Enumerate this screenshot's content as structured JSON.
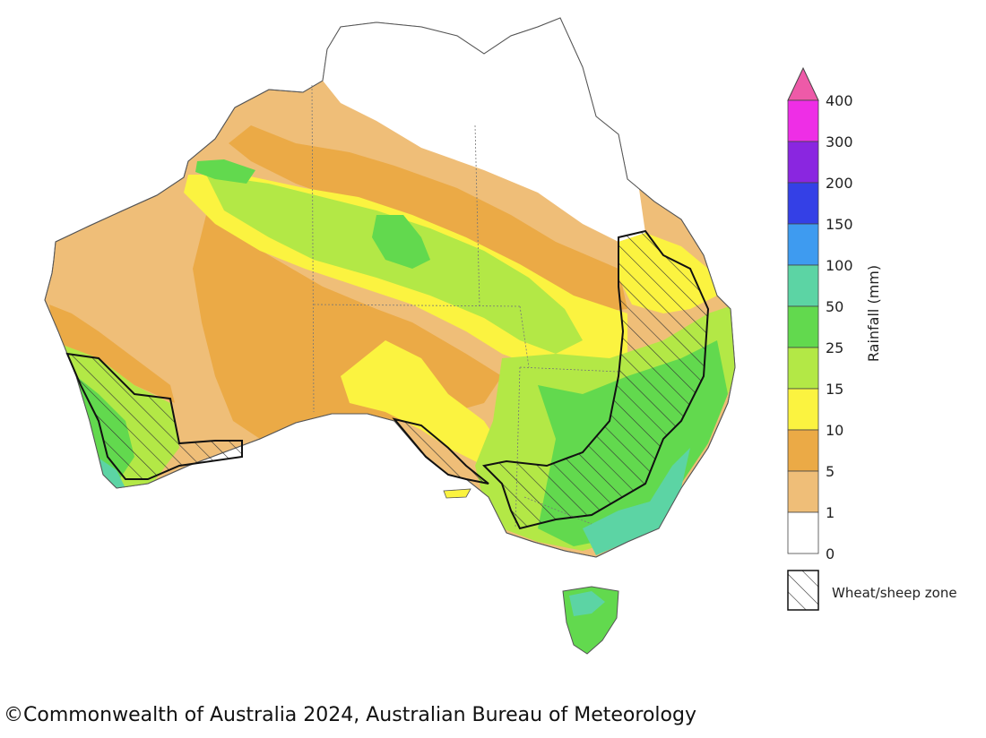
{
  "map": {
    "legend": {
      "title": "Rainfall (mm)",
      "ticks": [
        "400",
        "300",
        "200",
        "150",
        "100",
        "50",
        "25",
        "15",
        "10",
        "5",
        "1",
        "0"
      ],
      "bands": [
        {
          "range": "300-400",
          "color": "#ee2ee6"
        },
        {
          "range": "200-300",
          "color": "#8a26e0"
        },
        {
          "range": "150-200",
          "color": "#3440e6"
        },
        {
          "range": "100-150",
          "color": "#3e9bf0"
        },
        {
          "range": "50-100",
          "color": "#5cd4a4"
        },
        {
          "range": "25-50",
          "color": "#62d94e"
        },
        {
          "range": "15-25",
          "color": "#b3e846"
        },
        {
          "range": "10-15",
          "color": "#fbf340"
        },
        {
          "range": "5-10",
          "color": "#ebaa46"
        },
        {
          "range": "1-5",
          "color": "#efbe78"
        },
        {
          "range": "0-1",
          "color": "#ffffff"
        }
      ],
      "overflow_color": "#ee5aa8",
      "zone_label": "Wheat/sheep zone"
    },
    "colors": {
      "land_dry": "#efbe78",
      "land_orange": "#ebaa46",
      "land_yellow": "#fbf340",
      "land_lime": "#b3e846",
      "land_green": "#62d94e",
      "land_teal": "#5cd4a4",
      "land_none": "#ffffff",
      "border": "#222222"
    }
  },
  "footer": {
    "copyright": "©Commonwealth of Australia 2024, Australian Bureau of Meteorology"
  }
}
